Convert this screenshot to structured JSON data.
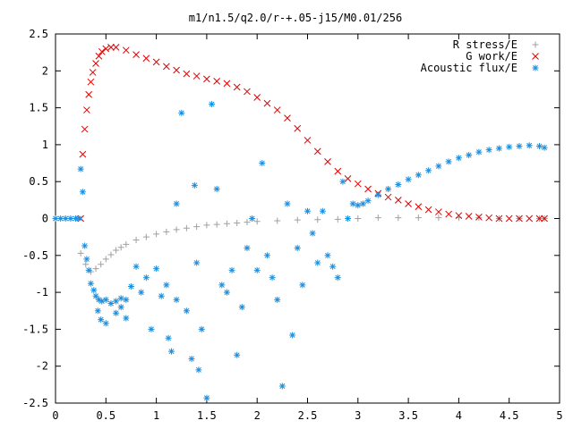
{
  "chart_data": {
    "type": "scatter",
    "title": "m1/n1.5/q2.0/r-+.05-j15/M0.01/256",
    "xlabel": "",
    "ylabel": "",
    "xlim": [
      0,
      5
    ],
    "ylim": [
      -2.5,
      2.5
    ],
    "x_ticks": [
      {
        "v": 0,
        "label": "0"
      },
      {
        "v": 0.5,
        "label": "0.5"
      },
      {
        "v": 1,
        "label": "1"
      },
      {
        "v": 1.5,
        "label": "1.5"
      },
      {
        "v": 2,
        "label": "2"
      },
      {
        "v": 2.5,
        "label": "2.5"
      },
      {
        "v": 3,
        "label": "3"
      },
      {
        "v": 3.5,
        "label": "3.5"
      },
      {
        "v": 4,
        "label": "4"
      },
      {
        "v": 4.5,
        "label": "4.5"
      },
      {
        "v": 5,
        "label": "5"
      }
    ],
    "y_ticks": [
      {
        "v": 2.5,
        "label": "2.5"
      },
      {
        "v": 2,
        "label": "2"
      },
      {
        "v": 1.5,
        "label": "1.5"
      },
      {
        "v": 1,
        "label": "1"
      },
      {
        "v": 0.5,
        "label": "0.5"
      },
      {
        "v": 0,
        "label": "0"
      },
      {
        "v": -0.5,
        "label": "-0.5"
      },
      {
        "v": -1,
        "label": "-1"
      },
      {
        "v": -1.5,
        "label": "-1.5"
      },
      {
        "v": -2,
        "label": "-2"
      },
      {
        "v": -2.5,
        "label": "-2.5"
      }
    ],
    "grid": false,
    "legend_position": "top-right",
    "series": [
      {
        "name": "R stress/E",
        "marker": "plus",
        "color": "#a0a0a0",
        "points": [
          [
            0.25,
            -0.47
          ],
          [
            0.3,
            -0.62
          ],
          [
            0.35,
            -0.72
          ],
          [
            0.4,
            -0.68
          ],
          [
            0.45,
            -0.62
          ],
          [
            0.5,
            -0.55
          ],
          [
            0.55,
            -0.49
          ],
          [
            0.6,
            -0.43
          ],
          [
            0.65,
            -0.39
          ],
          [
            0.7,
            -0.35
          ],
          [
            0.8,
            -0.29
          ],
          [
            0.9,
            -0.25
          ],
          [
            1.0,
            -0.21
          ],
          [
            1.1,
            -0.18
          ],
          [
            1.2,
            -0.15
          ],
          [
            1.3,
            -0.13
          ],
          [
            1.4,
            -0.11
          ],
          [
            1.5,
            -0.09
          ],
          [
            1.6,
            -0.08
          ],
          [
            1.7,
            -0.07
          ],
          [
            1.8,
            -0.06
          ],
          [
            1.9,
            -0.05
          ],
          [
            2.0,
            -0.04
          ],
          [
            2.2,
            -0.03
          ],
          [
            2.4,
            -0.02
          ],
          [
            2.6,
            -0.015
          ],
          [
            2.8,
            -0.01
          ],
          [
            3.0,
            0.0
          ],
          [
            3.2,
            0.01
          ],
          [
            3.4,
            0.01
          ],
          [
            3.6,
            0.01
          ],
          [
            3.8,
            0.01
          ],
          [
            4.0,
            0.01
          ],
          [
            4.2,
            0.01
          ],
          [
            4.4,
            0.0
          ],
          [
            4.6,
            0.0
          ],
          [
            4.8,
            0.0
          ],
          [
            4.85,
            0.0
          ]
        ]
      },
      {
        "name": "G work/E",
        "marker": "cross",
        "color": "#e00000",
        "points": [
          [
            0.25,
            0.0
          ],
          [
            0.27,
            0.87
          ],
          [
            0.29,
            1.21
          ],
          [
            0.31,
            1.47
          ],
          [
            0.33,
            1.68
          ],
          [
            0.35,
            1.85
          ],
          [
            0.37,
            1.98
          ],
          [
            0.4,
            2.1
          ],
          [
            0.43,
            2.2
          ],
          [
            0.46,
            2.26
          ],
          [
            0.5,
            2.3
          ],
          [
            0.55,
            2.32
          ],
          [
            0.6,
            2.32
          ],
          [
            0.7,
            2.28
          ],
          [
            0.8,
            2.22
          ],
          [
            0.9,
            2.17
          ],
          [
            1.0,
            2.12
          ],
          [
            1.1,
            2.06
          ],
          [
            1.2,
            2.01
          ],
          [
            1.3,
            1.96
          ],
          [
            1.4,
            1.93
          ],
          [
            1.5,
            1.89
          ],
          [
            1.6,
            1.86
          ],
          [
            1.7,
            1.83
          ],
          [
            1.8,
            1.78
          ],
          [
            1.9,
            1.72
          ],
          [
            2.0,
            1.64
          ],
          [
            2.1,
            1.56
          ],
          [
            2.2,
            1.47
          ],
          [
            2.3,
            1.36
          ],
          [
            2.4,
            1.22
          ],
          [
            2.5,
            1.06
          ],
          [
            2.6,
            0.91
          ],
          [
            2.7,
            0.77
          ],
          [
            2.8,
            0.64
          ],
          [
            2.9,
            0.54
          ],
          [
            3.0,
            0.47
          ],
          [
            3.1,
            0.4
          ],
          [
            3.2,
            0.34
          ],
          [
            3.3,
            0.29
          ],
          [
            3.4,
            0.25
          ],
          [
            3.5,
            0.2
          ],
          [
            3.6,
            0.16
          ],
          [
            3.7,
            0.12
          ],
          [
            3.8,
            0.09
          ],
          [
            3.9,
            0.06
          ],
          [
            4.0,
            0.04
          ],
          [
            4.1,
            0.03
          ],
          [
            4.2,
            0.02
          ],
          [
            4.3,
            0.01
          ],
          [
            4.4,
            0.0
          ],
          [
            4.5,
            0.0
          ],
          [
            4.6,
            0.0
          ],
          [
            4.7,
            0.0
          ],
          [
            4.8,
            0.0
          ],
          [
            4.85,
            0.0
          ]
        ]
      },
      {
        "name": "Acoustic flux/E",
        "marker": "star",
        "color": "#1e90e0",
        "points": [
          [
            0.0,
            0.0
          ],
          [
            0.05,
            0.0
          ],
          [
            0.1,
            0.0
          ],
          [
            0.15,
            0.0
          ],
          [
            0.2,
            0.0
          ],
          [
            0.23,
            0.0
          ],
          [
            0.25,
            0.67
          ],
          [
            0.27,
            0.36
          ],
          [
            0.29,
            -0.37
          ],
          [
            0.31,
            -0.55
          ],
          [
            0.33,
            -0.7
          ],
          [
            0.35,
            -0.88
          ],
          [
            0.38,
            -0.97
          ],
          [
            0.4,
            -1.05
          ],
          [
            0.43,
            -1.1
          ],
          [
            0.46,
            -1.12
          ],
          [
            0.5,
            -1.1
          ],
          [
            0.55,
            -1.15
          ],
          [
            0.6,
            -1.12
          ],
          [
            0.65,
            -1.08
          ],
          [
            0.7,
            -1.1
          ],
          [
            0.42,
            -1.25
          ],
          [
            0.45,
            -1.37
          ],
          [
            0.5,
            -1.42
          ],
          [
            0.6,
            -1.28
          ],
          [
            0.65,
            -1.2
          ],
          [
            0.7,
            -1.35
          ],
          [
            0.75,
            -0.92
          ],
          [
            0.8,
            -0.65
          ],
          [
            0.85,
            -1.0
          ],
          [
            0.9,
            -0.8
          ],
          [
            0.95,
            -1.5
          ],
          [
            1.0,
            -0.68
          ],
          [
            1.05,
            -1.05
          ],
          [
            1.1,
            -0.9
          ],
          [
            1.12,
            -1.62
          ],
          [
            1.15,
            -1.8
          ],
          [
            1.2,
            0.2
          ],
          [
            1.2,
            -1.1
          ],
          [
            1.25,
            1.43
          ],
          [
            1.3,
            -1.25
          ],
          [
            1.35,
            -1.9
          ],
          [
            1.38,
            0.45
          ],
          [
            1.4,
            -0.6
          ],
          [
            1.42,
            -2.05
          ],
          [
            1.45,
            -1.5
          ],
          [
            1.5,
            -2.43
          ],
          [
            1.55,
            1.55
          ],
          [
            1.6,
            0.4
          ],
          [
            1.65,
            -0.9
          ],
          [
            1.7,
            -1.0
          ],
          [
            1.75,
            -0.7
          ],
          [
            1.8,
            -1.85
          ],
          [
            1.85,
            -1.2
          ],
          [
            1.9,
            -0.4
          ],
          [
            1.95,
            0.0
          ],
          [
            2.0,
            -0.7
          ],
          [
            2.05,
            0.75
          ],
          [
            2.1,
            -0.5
          ],
          [
            2.15,
            -0.8
          ],
          [
            2.2,
            -1.1
          ],
          [
            2.25,
            -2.27
          ],
          [
            2.3,
            0.2
          ],
          [
            2.35,
            -1.58
          ],
          [
            2.4,
            -0.4
          ],
          [
            2.45,
            -0.9
          ],
          [
            2.5,
            0.1
          ],
          [
            2.55,
            -0.2
          ],
          [
            2.6,
            -0.6
          ],
          [
            2.65,
            0.1
          ],
          [
            2.7,
            -0.5
          ],
          [
            2.75,
            -0.65
          ],
          [
            2.8,
            -0.8
          ],
          [
            2.85,
            0.5
          ],
          [
            2.9,
            0.0
          ],
          [
            2.95,
            0.2
          ],
          [
            3.0,
            0.18
          ],
          [
            3.05,
            0.2
          ],
          [
            3.1,
            0.24
          ],
          [
            3.2,
            0.32
          ],
          [
            3.3,
            0.4
          ],
          [
            3.4,
            0.46
          ],
          [
            3.5,
            0.53
          ],
          [
            3.6,
            0.59
          ],
          [
            3.7,
            0.65
          ],
          [
            3.8,
            0.71
          ],
          [
            3.9,
            0.77
          ],
          [
            4.0,
            0.82
          ],
          [
            4.1,
            0.86
          ],
          [
            4.2,
            0.9
          ],
          [
            4.3,
            0.93
          ],
          [
            4.4,
            0.95
          ],
          [
            4.5,
            0.97
          ],
          [
            4.6,
            0.98
          ],
          [
            4.7,
            0.99
          ],
          [
            4.8,
            0.98
          ],
          [
            4.85,
            0.96
          ]
        ]
      }
    ]
  }
}
